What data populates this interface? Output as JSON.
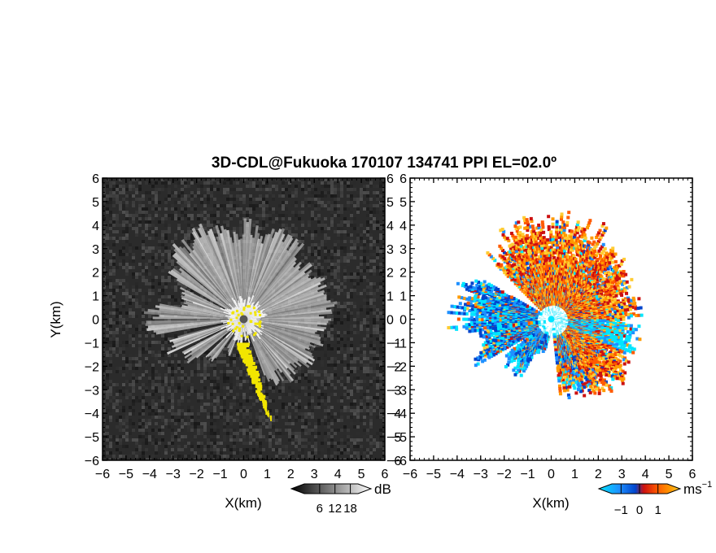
{
  "chart_data": [
    {
      "type": "heatmap",
      "panel": "left",
      "title": "3D-CDL@Fukuoka 170107 134741 PPI EL=02.0º",
      "xlabel": "X(km)",
      "ylabel": "Y(km)",
      "xlim": [
        -6,
        6
      ],
      "ylim": [
        -6,
        6
      ],
      "x_ticks": [
        "-6",
        "-5",
        "-4",
        "-3",
        "-2",
        "-1",
        "0",
        "1",
        "2",
        "3",
        "4",
        "5",
        "6"
      ],
      "y_ticks": [
        "-6",
        "-5",
        "-4",
        "-3",
        "-2",
        "-1",
        "0",
        "1",
        "2",
        "3",
        "4",
        "5",
        "6"
      ],
      "colorbar": {
        "unit": "dB",
        "ticks": [
          "6",
          "12",
          "18"
        ],
        "values": [
          6,
          12,
          18
        ],
        "range": [
          0,
          21
        ],
        "colormap": "grayscale"
      },
      "background_color": "#2b2b2b",
      "highlight_color": "#f2e600"
    },
    {
      "type": "heatmap",
      "panel": "right",
      "xlabel": "X(km)",
      "xlim": [
        -6,
        6
      ],
      "ylim": [
        -6,
        6
      ],
      "x_ticks": [
        "-6",
        "-5",
        "-4",
        "-3",
        "-2",
        "-1",
        "0",
        "1",
        "2",
        "3",
        "4",
        "5",
        "6"
      ],
      "y_ticks": [
        "-6",
        "-5",
        "-4",
        "-3",
        "-2",
        "-1",
        "0",
        "1",
        "2",
        "3",
        "4",
        "5",
        "6"
      ],
      "colorbar": {
        "unit": "ms",
        "unit_exponent": "−1",
        "ticks": [
          "−1",
          "0",
          "1"
        ],
        "values": [
          -1,
          0,
          1
        ],
        "range": [
          -1.5,
          1.5
        ],
        "colors": [
          "#00e5ff",
          "#1e90ff",
          "#0044cc",
          "#cc1010",
          "#ff5a00",
          "#ff9a00",
          "#ffcc33"
        ]
      },
      "background_color": "#ffffff"
    }
  ]
}
